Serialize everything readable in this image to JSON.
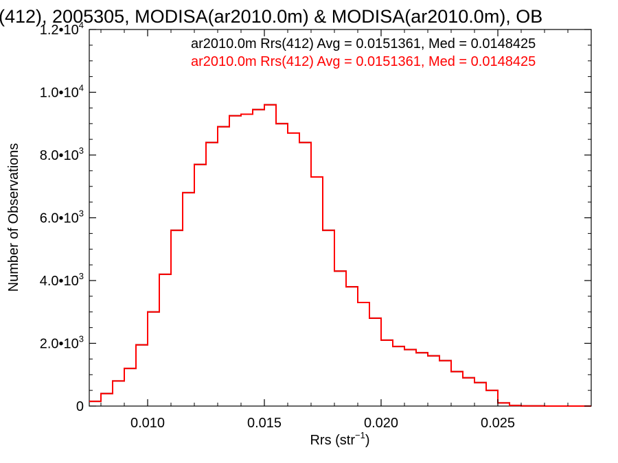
{
  "chart_data": {
    "type": "line",
    "title": "(412), 2005305, MODISA(ar2010.0m) & MODISA(ar2010.0m), OB",
    "xlabel": "Rrs (str",
    "xlabel_sup": "−1",
    "xlabel_end": ")",
    "ylabel": "Number of Observations",
    "xlim": [
      0.0075,
      0.029
    ],
    "ylim": [
      0,
      12000
    ],
    "x_ticks": [
      {
        "value": 0.01,
        "label": "0.010"
      },
      {
        "value": 0.015,
        "label": "0.015"
      },
      {
        "value": 0.02,
        "label": "0.020"
      },
      {
        "value": 0.025,
        "label": "0.025"
      }
    ],
    "y_ticks": [
      {
        "value": 0,
        "base": "0",
        "exp": ""
      },
      {
        "value": 2000,
        "base": "2.0•10",
        "exp": "3"
      },
      {
        "value": 4000,
        "base": "4.0•10",
        "exp": "3"
      },
      {
        "value": 6000,
        "base": "6.0•10",
        "exp": "3"
      },
      {
        "value": 8000,
        "base": "8.0•10",
        "exp": "3"
      },
      {
        "value": 10000,
        "base": "1.0•10",
        "exp": "4"
      },
      {
        "value": 12000,
        "base": "1.2•10",
        "exp": "4"
      }
    ],
    "legend_position": "top-right",
    "series": [
      {
        "name": "ar2010.0m Rrs(412) Avg = 0.0151361, Med = 0.0148425",
        "color": "#000000",
        "hidden_behind_next": true,
        "x": [
          0.0075,
          0.008,
          0.0085,
          0.009,
          0.0095,
          0.01,
          0.0105,
          0.011,
          0.0115,
          0.012,
          0.0125,
          0.013,
          0.0135,
          0.014,
          0.0145,
          0.015,
          0.0155,
          0.016,
          0.0165,
          0.017,
          0.0175,
          0.018,
          0.0185,
          0.019,
          0.0195,
          0.02,
          0.0205,
          0.021,
          0.0215,
          0.022,
          0.0225,
          0.023,
          0.0235,
          0.024,
          0.0245,
          0.025,
          0.0255,
          0.026,
          0.027,
          0.028,
          0.029
        ],
        "y": [
          150,
          400,
          800,
          1200,
          1950,
          3000,
          4200,
          5600,
          6800,
          7700,
          8400,
          8900,
          9250,
          9300,
          9450,
          9600,
          9000,
          8700,
          8400,
          7300,
          5600,
          4300,
          3800,
          3300,
          2800,
          2100,
          1900,
          1800,
          1700,
          1600,
          1450,
          1100,
          900,
          750,
          500,
          100,
          20,
          5,
          0,
          0,
          0
        ]
      },
      {
        "name": "ar2010.0m Rrs(412) Avg = 0.0151361, Med = 0.0148425",
        "color": "#ff0000",
        "x": [
          0.0075,
          0.008,
          0.0085,
          0.009,
          0.0095,
          0.01,
          0.0105,
          0.011,
          0.0115,
          0.012,
          0.0125,
          0.013,
          0.0135,
          0.014,
          0.0145,
          0.015,
          0.0155,
          0.016,
          0.0165,
          0.017,
          0.0175,
          0.018,
          0.0185,
          0.019,
          0.0195,
          0.02,
          0.0205,
          0.021,
          0.0215,
          0.022,
          0.0225,
          0.023,
          0.0235,
          0.024,
          0.0245,
          0.025,
          0.0255,
          0.026,
          0.027,
          0.028,
          0.029
        ],
        "y": [
          150,
          400,
          800,
          1200,
          1950,
          3000,
          4200,
          5600,
          6800,
          7700,
          8400,
          8900,
          9250,
          9300,
          9450,
          9600,
          9000,
          8700,
          8400,
          7300,
          5600,
          4300,
          3800,
          3300,
          2800,
          2100,
          1900,
          1800,
          1700,
          1600,
          1450,
          1100,
          900,
          750,
          500,
          100,
          20,
          5,
          0,
          0,
          0
        ]
      }
    ]
  }
}
